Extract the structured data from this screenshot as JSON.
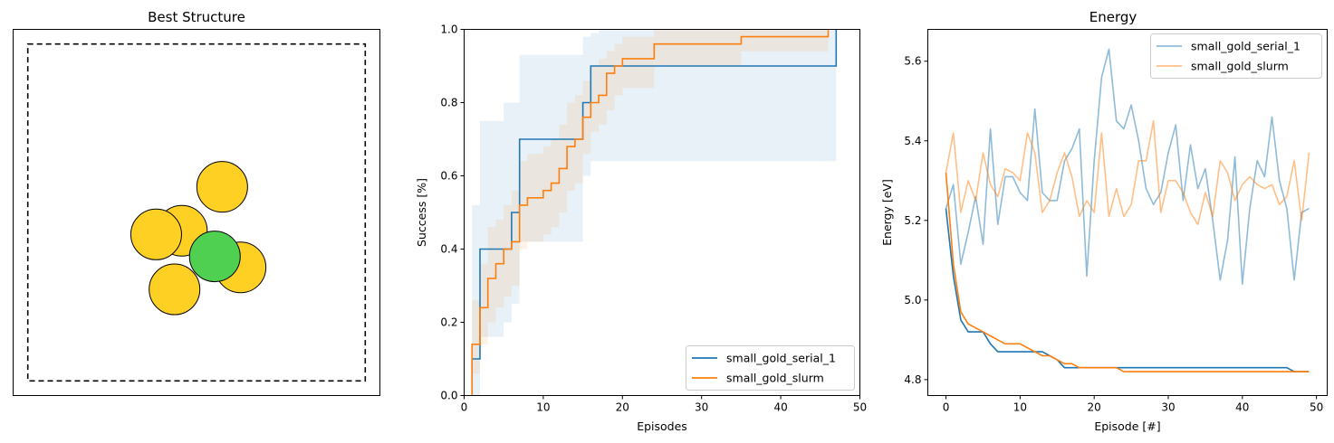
{
  "chart_data": [
    {
      "type": "scatter",
      "title": "Best Structure",
      "colors": {
        "atom": "#fdd023",
        "highlight": "#50d050",
        "edge": "#000000",
        "cell": "#000000"
      },
      "cell": {
        "x": [
          0.04,
          0.96
        ],
        "y": [
          0.04,
          0.96
        ],
        "style": "dashed"
      },
      "atoms": [
        {
          "x": 0.46,
          "y": 0.45,
          "kind": "gold"
        },
        {
          "x": 0.39,
          "y": 0.44,
          "kind": "gold"
        },
        {
          "x": 0.57,
          "y": 0.57,
          "kind": "gold"
        },
        {
          "x": 0.62,
          "y": 0.35,
          "kind": "gold"
        },
        {
          "x": 0.44,
          "y": 0.29,
          "kind": "gold"
        },
        {
          "x": 0.55,
          "y": 0.38,
          "kind": "highlight"
        }
      ],
      "xlim": [
        0,
        1
      ],
      "ylim": [
        0,
        1
      ]
    },
    {
      "type": "line",
      "title": "",
      "xlabel": "Episodes",
      "ylabel": "Success [%]",
      "xlim": [
        0,
        50
      ],
      "ylim": [
        0,
        1
      ],
      "xticks": [
        "0",
        "10",
        "20",
        "30",
        "40",
        "50"
      ],
      "yticks": [
        "0.0",
        "0.2",
        "0.4",
        "0.6",
        "0.8",
        "1.0"
      ],
      "legend_position": "lower-right",
      "series": [
        {
          "name": "small_gold_serial_1",
          "color": "#1f77b4",
          "step_x": [
            1,
            2,
            3,
            4,
            5,
            6,
            7,
            8,
            9,
            10,
            11,
            12,
            13,
            14,
            15,
            16,
            17,
            18,
            19,
            20,
            21,
            22,
            23,
            24,
            25,
            26,
            27,
            28,
            29,
            30,
            31,
            32,
            33,
            34,
            35,
            36,
            37,
            38,
            39,
            40,
            41,
            42,
            43,
            44,
            45,
            46,
            47
          ],
          "step_y": [
            0.1,
            0.4,
            0.4,
            0.4,
            0.4,
            0.5,
            0.7,
            0.7,
            0.7,
            0.7,
            0.7,
            0.7,
            0.7,
            0.7,
            0.8,
            0.9,
            0.9,
            0.9,
            0.9,
            0.9,
            0.9,
            0.9,
            0.9,
            0.9,
            0.9,
            0.9,
            0.9,
            0.9,
            0.9,
            0.9,
            0.9,
            0.9,
            0.9,
            0.9,
            0.9,
            0.9,
            0.9,
            0.9,
            0.9,
            0.9,
            0.9,
            0.9,
            0.9,
            0.9,
            0.9,
            0.9,
            1.0
          ],
          "band_lower": [
            0.0,
            0.16,
            0.16,
            0.16,
            0.2,
            0.25,
            0.42,
            0.42,
            0.42,
            0.42,
            0.42,
            0.42,
            0.42,
            0.42,
            0.6,
            0.64,
            0.64,
            0.64,
            0.64,
            0.64,
            0.64,
            0.64,
            0.64,
            0.64,
            0.64,
            0.64,
            0.64,
            0.64,
            0.64,
            0.64,
            0.64,
            0.64,
            0.64,
            0.64,
            0.64,
            0.64,
            0.64,
            0.64,
            0.64,
            0.64,
            0.64,
            0.64,
            0.64,
            0.64,
            0.64,
            0.64,
            0.64
          ],
          "band_upper": [
            0.52,
            0.75,
            0.75,
            0.75,
            0.8,
            0.8,
            0.93,
            0.93,
            0.93,
            0.93,
            0.93,
            0.93,
            0.93,
            0.93,
            0.98,
            0.99,
            1.0,
            1.0,
            1.0,
            1.0,
            1.0,
            1.0,
            1.0,
            1.0,
            1.0,
            1.0,
            1.0,
            1.0,
            1.0,
            1.0,
            1.0,
            1.0,
            1.0,
            1.0,
            1.0,
            1.0,
            1.0,
            1.0,
            1.0,
            1.0,
            1.0,
            1.0,
            1.0,
            1.0,
            1.0,
            1.0,
            1.0
          ]
        },
        {
          "name": "small_gold_slurm",
          "color": "#ff7f0e",
          "step_x": [
            1,
            2,
            3,
            4,
            5,
            6,
            7,
            8,
            9,
            10,
            11,
            12,
            13,
            14,
            15,
            16,
            17,
            18,
            19,
            20,
            24,
            35,
            46
          ],
          "step_y": [
            0.14,
            0.24,
            0.32,
            0.36,
            0.4,
            0.42,
            0.52,
            0.54,
            0.54,
            0.56,
            0.58,
            0.62,
            0.68,
            0.7,
            0.76,
            0.8,
            0.82,
            0.88,
            0.9,
            0.92,
            0.96,
            0.98,
            1.0
          ],
          "band_lower": [
            0.06,
            0.14,
            0.2,
            0.24,
            0.27,
            0.3,
            0.4,
            0.42,
            0.42,
            0.44,
            0.46,
            0.5,
            0.56,
            0.58,
            0.66,
            0.72,
            0.74,
            0.78,
            0.82,
            0.84,
            0.9,
            0.94,
            0.96
          ],
          "band_upper": [
            0.26,
            0.36,
            0.46,
            0.48,
            0.52,
            0.56,
            0.64,
            0.66,
            0.66,
            0.68,
            0.7,
            0.74,
            0.8,
            0.82,
            0.86,
            0.9,
            0.92,
            0.94,
            0.96,
            0.98,
            1.0,
            1.0,
            1.0
          ]
        }
      ]
    },
    {
      "type": "line",
      "title": "Energy",
      "xlabel": "Episode [#]",
      "ylabel": "Energy [eV]",
      "xlim": [
        -2.45,
        51.45
      ],
      "ylim": [
        4.76,
        5.68
      ],
      "xticks": [
        0,
        10,
        20,
        30,
        40,
        50
      ],
      "yticks": [
        "4.8",
        "5.0",
        "5.2",
        "5.4",
        "5.6"
      ],
      "legend_position": "upper-right",
      "series": [
        {
          "name": "small_gold_serial_1",
          "color": "#1f77b4",
          "alpha": 0.5,
          "x": [
            0,
            1,
            2,
            3,
            4,
            5,
            6,
            7,
            8,
            9,
            10,
            11,
            12,
            13,
            14,
            15,
            16,
            17,
            18,
            19,
            20,
            21,
            22,
            23,
            24,
            25,
            26,
            27,
            28,
            29,
            30,
            31,
            32,
            33,
            34,
            35,
            36,
            37,
            38,
            39,
            40,
            41,
            42,
            43,
            44,
            45,
            46,
            47,
            48,
            49
          ],
          "values": [
            5.23,
            5.29,
            5.09,
            5.17,
            5.26,
            5.14,
            5.43,
            5.19,
            5.31,
            5.31,
            5.27,
            5.25,
            5.48,
            5.27,
            5.25,
            5.25,
            5.35,
            5.38,
            5.43,
            5.06,
            5.35,
            5.56,
            5.63,
            5.45,
            5.43,
            5.49,
            5.4,
            5.28,
            5.24,
            5.27,
            5.37,
            5.44,
            5.25,
            5.39,
            5.28,
            5.33,
            5.2,
            5.05,
            5.15,
            5.36,
            5.04,
            5.23,
            5.35,
            5.31,
            5.46,
            5.3,
            5.23,
            5.05,
            5.22,
            5.23
          ]
        },
        {
          "name": "small_gold_slurm",
          "color": "#ff7f0e",
          "alpha": 0.5,
          "x": [
            0,
            1,
            2,
            3,
            4,
            5,
            6,
            7,
            8,
            9,
            10,
            11,
            12,
            13,
            14,
            15,
            16,
            17,
            18,
            19,
            20,
            21,
            22,
            23,
            24,
            25,
            26,
            27,
            28,
            29,
            30,
            31,
            32,
            33,
            34,
            35,
            36,
            37,
            38,
            39,
            40,
            41,
            42,
            43,
            44,
            45,
            46,
            47,
            48,
            49
          ],
          "values": [
            5.32,
            5.42,
            5.22,
            5.3,
            5.25,
            5.37,
            5.29,
            5.26,
            5.33,
            5.32,
            5.3,
            5.42,
            5.37,
            5.22,
            5.25,
            5.32,
            5.37,
            5.31,
            5.21,
            5.25,
            5.22,
            5.42,
            5.21,
            5.28,
            5.21,
            5.24,
            5.35,
            5.35,
            5.45,
            5.22,
            5.3,
            5.3,
            5.27,
            5.22,
            5.19,
            5.27,
            5.21,
            5.35,
            5.32,
            5.25,
            5.29,
            5.31,
            5.29,
            5.28,
            5.29,
            5.24,
            5.26,
            5.35,
            5.2,
            5.37
          ]
        },
        {
          "name": "",
          "color": "#1f77b4",
          "x": [
            0,
            1,
            2,
            3,
            4,
            5,
            6,
            7,
            8,
            9,
            10,
            11,
            12,
            13,
            14,
            15,
            16,
            17,
            18,
            19,
            20,
            21,
            22,
            23,
            24,
            25,
            26,
            27,
            28,
            29,
            30,
            31,
            32,
            33,
            34,
            35,
            36,
            37,
            38,
            39,
            40,
            41,
            42,
            43,
            44,
            45,
            46,
            47,
            48,
            49
          ],
          "values": [
            5.23,
            5.06,
            4.95,
            4.92,
            4.92,
            4.92,
            4.89,
            4.87,
            4.87,
            4.87,
            4.87,
            4.87,
            4.87,
            4.87,
            4.86,
            4.85,
            4.83,
            4.83,
            4.83,
            4.83,
            4.83,
            4.83,
            4.83,
            4.83,
            4.83,
            4.83,
            4.83,
            4.83,
            4.83,
            4.83,
            4.83,
            4.83,
            4.83,
            4.83,
            4.83,
            4.83,
            4.83,
            4.83,
            4.83,
            4.83,
            4.83,
            4.83,
            4.83,
            4.83,
            4.83,
            4.83,
            4.83,
            4.82,
            4.82,
            4.82
          ]
        },
        {
          "name": "",
          "color": "#ff7f0e",
          "x": [
            0,
            1,
            2,
            3,
            4,
            5,
            6,
            7,
            8,
            9,
            10,
            11,
            12,
            13,
            14,
            15,
            16,
            17,
            18,
            19,
            20,
            21,
            22,
            23,
            24,
            25,
            26,
            27,
            28,
            29,
            30,
            31,
            32,
            33,
            34,
            35,
            36,
            37,
            38,
            39,
            40,
            41,
            42,
            43,
            44,
            45,
            46,
            47,
            48,
            49
          ],
          "values": [
            5.32,
            5.09,
            4.97,
            4.94,
            4.93,
            4.92,
            4.91,
            4.9,
            4.89,
            4.89,
            4.89,
            4.88,
            4.87,
            4.86,
            4.86,
            4.85,
            4.84,
            4.84,
            4.83,
            4.83,
            4.83,
            4.83,
            4.83,
            4.83,
            4.82,
            4.82,
            4.82,
            4.82,
            4.82,
            4.82,
            4.82,
            4.82,
            4.82,
            4.82,
            4.82,
            4.82,
            4.82,
            4.82,
            4.82,
            4.82,
            4.82,
            4.82,
            4.82,
            4.82,
            4.82,
            4.82,
            4.82,
            4.82,
            4.82,
            4.82
          ]
        }
      ]
    }
  ]
}
